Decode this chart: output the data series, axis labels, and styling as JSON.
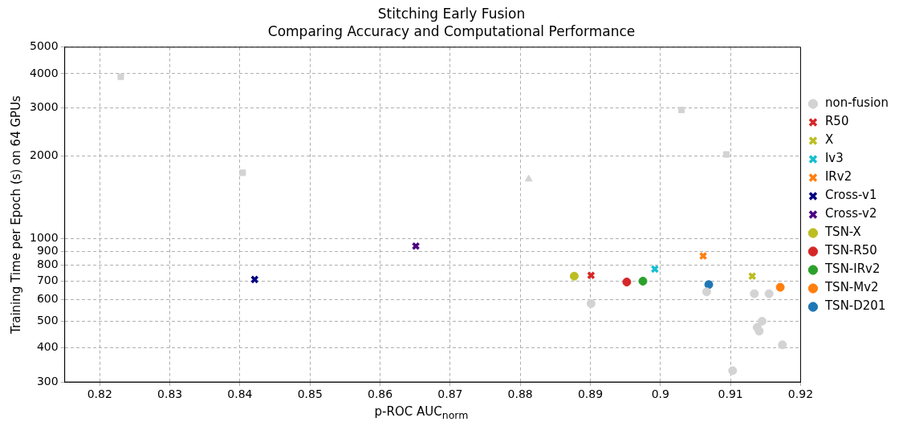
{
  "chart_data": {
    "type": "scatter",
    "title": "Stitching Early Fusion",
    "subtitle": "Comparing Accuracy and Computational Performance",
    "xlabel": "p-ROC AUC$_{norm}$",
    "ylabel": "Training Time per Epoch (s) on 64 GPUs",
    "log": "y",
    "grid": true,
    "legend": "right",
    "xlim": [
      0.815,
      0.92
    ],
    "xticks": [
      0.82,
      0.83,
      0.84,
      0.85,
      0.86,
      0.87,
      0.88,
      0.89,
      0.9,
      0.91,
      0.92
    ],
    "ylim": [
      300,
      5000
    ],
    "yticks": [
      300,
      400,
      500,
      600,
      700,
      800,
      900,
      1000,
      2000,
      3000,
      4000,
      5000
    ],
    "series": [
      {
        "name": "non-fusion",
        "color": "#d3d3d3",
        "marker": "circle",
        "x": [
          0.8901,
          0.9066,
          0.9134,
          0.9155,
          0.9145,
          0.9138,
          0.9141,
          0.9174,
          0.9103
        ],
        "values": [
          580,
          640,
          630,
          630,
          500,
          475,
          460,
          410,
          330
        ]
      },
      {
        "color": "#d3d3d3",
        "marker": "square",
        "x": [
          0.823,
          0.8404,
          0.903,
          0.9094
        ],
        "values": [
          3900,
          1740,
          2950,
          2030
        ]
      },
      {
        "color": "#d3d3d3",
        "marker": "triangle",
        "x": [
          0.8812
        ],
        "values": [
          1650
        ]
      },
      {
        "name": "R50",
        "color": "#d62728",
        "marker": "cross",
        "x": [
          0.8901
        ],
        "values": [
          735
        ]
      },
      {
        "name": "X",
        "color": "#bcbd22",
        "marker": "cross",
        "x": [
          0.9131
        ],
        "values": [
          730
        ]
      },
      {
        "name": "Iv3",
        "color": "#17becf",
        "marker": "cross",
        "x": [
          0.8992
        ],
        "values": [
          775
        ]
      },
      {
        "name": "IRv2",
        "color": "#ff7f0e",
        "marker": "cross",
        "x": [
          0.9061
        ],
        "values": [
          865
        ]
      },
      {
        "name": "Cross-v1",
        "color": "#000080",
        "marker": "cross",
        "x": [
          0.8421
        ],
        "values": [
          710
        ]
      },
      {
        "name": "Cross-v2",
        "color": "#4b0082",
        "marker": "cross",
        "x": [
          0.8651
        ],
        "values": [
          940
        ]
      },
      {
        "name": "TSN-X",
        "color": "#bcbd22",
        "marker": "circle",
        "x": [
          0.8877
        ],
        "values": [
          730
        ]
      },
      {
        "name": "TSN-R50",
        "color": "#d62728",
        "marker": "circle",
        "x": [
          0.8952
        ],
        "values": [
          695
        ]
      },
      {
        "name": "TSN-IRv2",
        "color": "#2ca02c",
        "marker": "circle",
        "x": [
          0.8975
        ],
        "values": [
          700
        ]
      },
      {
        "name": "TSN-Mv2",
        "color": "#ff7f0e",
        "marker": "circle",
        "x": [
          0.9171
        ],
        "values": [
          665
        ]
      },
      {
        "name": "TSN-D201",
        "color": "#1f77b4",
        "marker": "circle",
        "x": [
          0.9069
        ],
        "values": [
          680
        ]
      }
    ]
  }
}
